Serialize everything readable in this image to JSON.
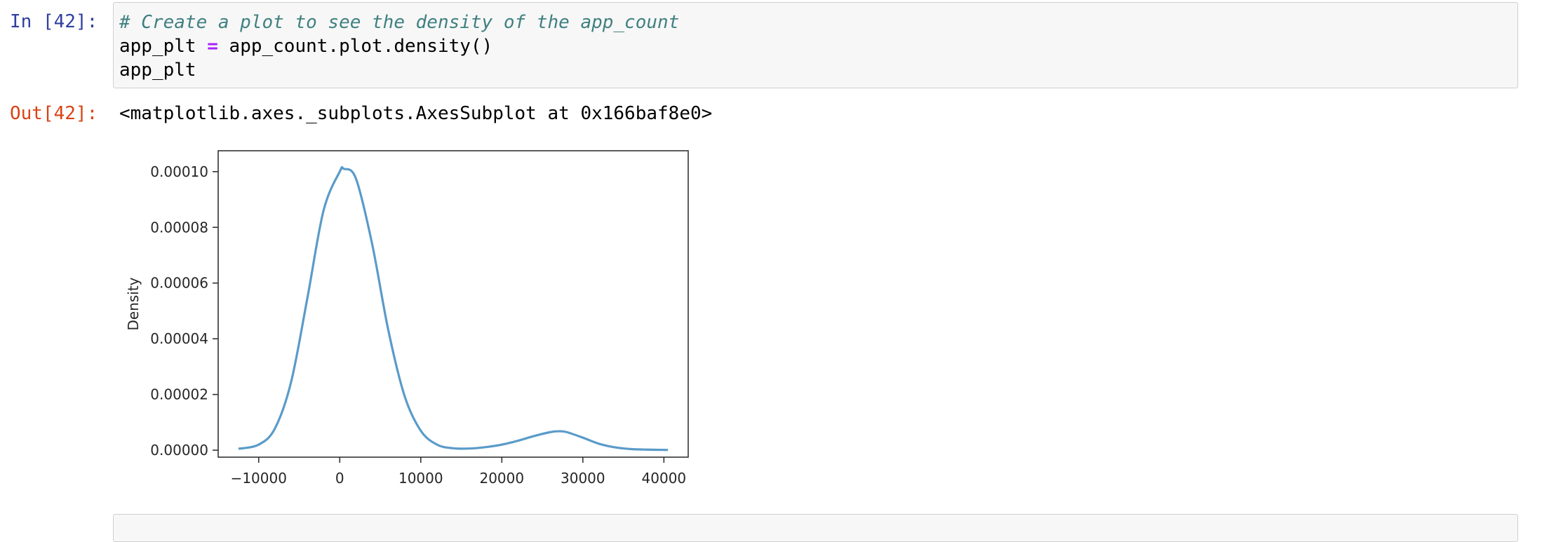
{
  "input_cell": {
    "prompt": "In [42]:",
    "lines": {
      "comment": "# Create a plot to see the density of the app_count",
      "line2_lhs": "app_plt ",
      "line2_op": "=",
      "line2_rhs": " app_count.plot.density()",
      "line3": "app_plt"
    }
  },
  "output_cell": {
    "prompt": "Out[42]:",
    "text": "<matplotlib.axes._subplots.AxesSubplot at 0x166baf8e0>"
  },
  "chart_data": {
    "type": "line",
    "title": "",
    "xlabel": "",
    "ylabel": "Density",
    "xlim": [
      -15000,
      43000
    ],
    "ylim": [
      -2.5e-06,
      0.0001075
    ],
    "grid": false,
    "legend": "none",
    "line_color": "#5a9bc9",
    "x_ticks": [
      -10000,
      0,
      10000,
      20000,
      30000,
      40000
    ],
    "x_tick_labels": [
      "−10000",
      "0",
      "10000",
      "20000",
      "30000",
      "40000"
    ],
    "y_ticks": [
      0,
      2e-05,
      4e-05,
      6e-05,
      8e-05,
      0.0001
    ],
    "y_tick_labels": [
      "0.00000",
      "0.00002",
      "0.00004",
      "0.00006",
      "0.00008",
      "0.00010"
    ],
    "series": [
      {
        "x": [
          -12500,
          -10000,
          -8000,
          -6000,
          -4000,
          -2000,
          0,
          500,
          2000,
          4000,
          6000,
          8000,
          10000,
          12000,
          14000,
          16000,
          18000,
          20000,
          22000,
          24000,
          26000,
          27000,
          28000,
          30000,
          32000,
          34000,
          36000,
          38000,
          40500
        ],
        "y": [
          5e-07,
          2e-06,
          7.8e-06,
          2.45e-05,
          5.45e-05,
          8.6e-05,
          0.0001,
          0.000101,
          9.75e-05,
          7.4e-05,
          4.3e-05,
          1.95e-05,
          7e-06,
          2e-06,
          7e-07,
          6e-07,
          1.1e-06,
          2e-06,
          3.4e-06,
          5.1e-06,
          6.5e-06,
          6.8e-06,
          6.5e-06,
          4.5e-06,
          2.3e-06,
          1e-06,
          4e-07,
          2e-07,
          1e-07
        ]
      }
    ]
  }
}
